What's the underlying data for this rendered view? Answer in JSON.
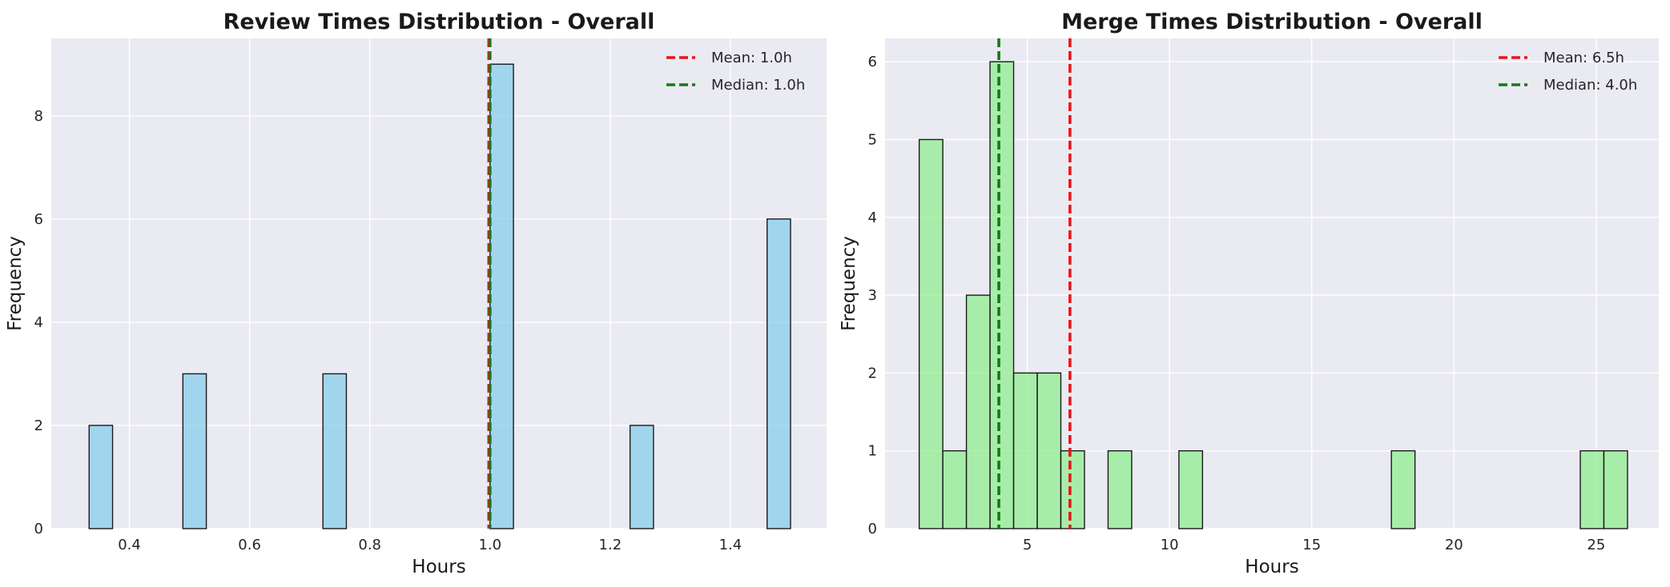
{
  "chart_data": [
    {
      "type": "bar",
      "title": "Review Times Distribution - Overall",
      "xlabel": "Hours",
      "ylabel": "Frequency",
      "xlim": [
        0.27,
        1.56
      ],
      "ylim": [
        0,
        9.5
      ],
      "xticks": [
        "0.4",
        "0.6",
        "0.8",
        "1.0",
        "1.2",
        "1.4"
      ],
      "xtick_values": [
        0.4,
        0.6,
        0.8,
        1.0,
        1.2,
        1.4
      ],
      "yticks": [
        "0",
        "2",
        "4",
        "6",
        "8"
      ],
      "ytick_values": [
        0,
        2,
        4,
        6,
        8
      ],
      "grid": true,
      "legend_position": "top-right",
      "bar_color": "#87ceeb",
      "bins": [
        {
          "x0": 0.333,
          "x1": 0.372,
          "count": 2
        },
        {
          "x0": 0.489,
          "x1": 0.528,
          "count": 3
        },
        {
          "x0": 0.722,
          "x1": 0.761,
          "count": 3
        },
        {
          "x0": 1.0,
          "x1": 1.039,
          "count": 9
        },
        {
          "x0": 1.233,
          "x1": 1.272,
          "count": 2
        },
        {
          "x0": 1.461,
          "x1": 1.5,
          "count": 6
        }
      ],
      "lines": [
        {
          "label": "Mean: 1.0h",
          "x": 0.998,
          "color": "#e8141a"
        },
        {
          "label": "Median: 1.0h",
          "x": 1.0,
          "color": "#157a15"
        }
      ]
    },
    {
      "type": "bar",
      "title": "Merge Times Distribution - Overall",
      "xlabel": "Hours",
      "ylabel": "Frequency",
      "xlim": [
        0.0,
        27.2
      ],
      "ylim": [
        0,
        6.3
      ],
      "xticks": [
        "5",
        "10",
        "15",
        "20",
        "25"
      ],
      "xtick_values": [
        5,
        10,
        15,
        20,
        25
      ],
      "yticks": [
        "0",
        "1",
        "2",
        "3",
        "4",
        "5",
        "6"
      ],
      "ytick_values": [
        0,
        1,
        2,
        3,
        4,
        5,
        6
      ],
      "grid": true,
      "legend_position": "top-right",
      "bar_color": "#90ee90",
      "bins": [
        {
          "x0": 1.2,
          "x1": 2.03,
          "count": 5
        },
        {
          "x0": 2.03,
          "x1": 2.86,
          "count": 1
        },
        {
          "x0": 2.86,
          "x1": 3.69,
          "count": 3
        },
        {
          "x0": 3.69,
          "x1": 4.52,
          "count": 6
        },
        {
          "x0": 4.52,
          "x1": 5.35,
          "count": 2
        },
        {
          "x0": 5.35,
          "x1": 6.18,
          "count": 2
        },
        {
          "x0": 6.18,
          "x1": 7.01,
          "count": 1
        },
        {
          "x0": 7.84,
          "x1": 8.67,
          "count": 1
        },
        {
          "x0": 10.33,
          "x1": 11.16,
          "count": 1
        },
        {
          "x0": 17.8,
          "x1": 18.63,
          "count": 1
        },
        {
          "x0": 24.44,
          "x1": 25.27,
          "count": 1
        },
        {
          "x0": 25.27,
          "x1": 26.1,
          "count": 1
        }
      ],
      "lines": [
        {
          "label": "Mean: 6.5h",
          "x": 6.5,
          "color": "#e8141a"
        },
        {
          "label": "Median: 4.0h",
          "x": 4.0,
          "color": "#157a15"
        }
      ]
    }
  ]
}
